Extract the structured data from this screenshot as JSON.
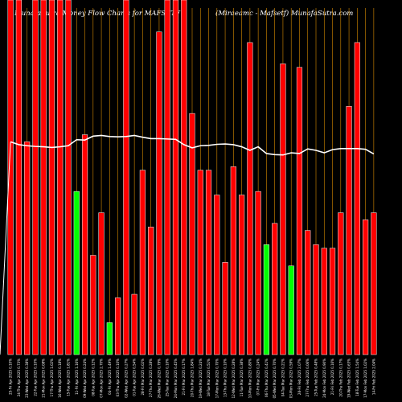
{
  "chart_data": {
    "type": "bar",
    "title_left": "MunafaSutra  Money Flow  Charts for MAFSETF",
    "title_right": "(Miraeamc -  Mafsetf) MunafaSutra.com",
    "ylim": [
      0,
      100
    ],
    "grid": "vertical",
    "colors": {
      "up": "#00ff00",
      "down": "#ff0000",
      "bar_stroke": "#ffffff",
      "line": "#ffffff",
      "grid": "#d98c00",
      "background": "#000000",
      "text": "#ffffff"
    },
    "categories": [
      "25-Fri Apr 2025 0.10%",
      "24-Thu Apr 2025 0.73%",
      "23-Wed Apr 2025 0.38%",
      "22-Tue Apr 2025 0.10%",
      "21-Mon Apr 2025 0.08%",
      "17-Thu Apr 2025 1.02%",
      "16-Wed Apr 2025 0.18%",
      "15-Tue Apr 2025 1.81%",
      "11-Fri Apr 2025 1.16%",
      "09-Wed Apr 2025 0.24%",
      "08-Tue Apr 2025 0.12%",
      "07-Mon Apr 2025 2.70%",
      "04-Fri Apr 2025 1.49%",
      "03-Thu Apr 2025 0.10%",
      "02-Wed Apr 2025 0.27%",
      "01-Tue Apr 2025 0.54%",
      "28-Fri Mar 2025 0.02%",
      "27-Thu Mar 2025 0.28%",
      "26-Wed Mar 2025 0.79%",
      "25-Tue Mar 2025 0.10%",
      "24-Mon Mar 2025 0.45%",
      "21-Fri Mar 2025 0.17%",
      "20-Thu Mar 2025 1.84%",
      "19-Wed Mar 2025 0.24%",
      "18-Tue Mar 2025 0.51%",
      "17-Mon Mar 2025 0.70%",
      "13-Thu Mar 2025 0.10%",
      "12-Wed Mar 2025 0.28%",
      "11-Tue Mar 2025 0.38%",
      "10-Mon Mar 2025 0.80%",
      "07-Fri Mar 2025 0.24%",
      "06-Thu Mar 2025 0.41%",
      "05-Wed Mar 2025 0.70%",
      "04-Tue Mar 2025 0.21%",
      "03-Mon Mar 2025 0.59%",
      "28-Fri Feb 2025 2.07%",
      "27-Thu Feb 2025 0.06%",
      "25-Tue Feb 2025 0.48%",
      "24-Mon Feb 2025 0.90%",
      "21-Fri Feb 2025 0.16%",
      "20-Thu Feb 2025 0.17%",
      "19-Wed Feb 2025 0.63%",
      "18-Tue Feb 2025 1.54%",
      "17-Mon Feb 2025 1.02%",
      "14-Fri Feb 2025 2.04%"
    ],
    "series": [
      {
        "type": "bar",
        "values": [
          100,
          100,
          60,
          100,
          100,
          100,
          100,
          100,
          46,
          62,
          28,
          40,
          9,
          16,
          100,
          17,
          52,
          36,
          91,
          100,
          100,
          100,
          68,
          52,
          52,
          45,
          26,
          53,
          45,
          88,
          46,
          31,
          37,
          82,
          25,
          81,
          35,
          31,
          30,
          30,
          40,
          70,
          88,
          38,
          40
        ],
        "up": [
          false,
          false,
          false,
          false,
          false,
          false,
          false,
          false,
          true,
          false,
          false,
          false,
          true,
          false,
          false,
          false,
          false,
          false,
          false,
          false,
          false,
          false,
          false,
          false,
          false,
          false,
          false,
          false,
          false,
          false,
          false,
          true,
          false,
          false,
          true,
          false,
          false,
          false,
          false,
          false,
          false,
          false,
          false,
          false,
          false
        ]
      },
      {
        "type": "line",
        "values": [
          60,
          59.2,
          58.9,
          58.7,
          58.6,
          58.4,
          58.6,
          58.9,
          60.6,
          60.5,
          61.6,
          61.8,
          61.5,
          61.4,
          61.5,
          61.8,
          61.3,
          60.9,
          60.9,
          60.8,
          60.7,
          59.2,
          58.3,
          58.9,
          59.0,
          59.3,
          59.4,
          59.2,
          58.6,
          57.6,
          58.6,
          56.7,
          56.4,
          56.3,
          56.9,
          56.7,
          58.0,
          57.6,
          56.9,
          57.8,
          58.1,
          58.1,
          58.1,
          57.9,
          56.6
        ]
      }
    ]
  }
}
